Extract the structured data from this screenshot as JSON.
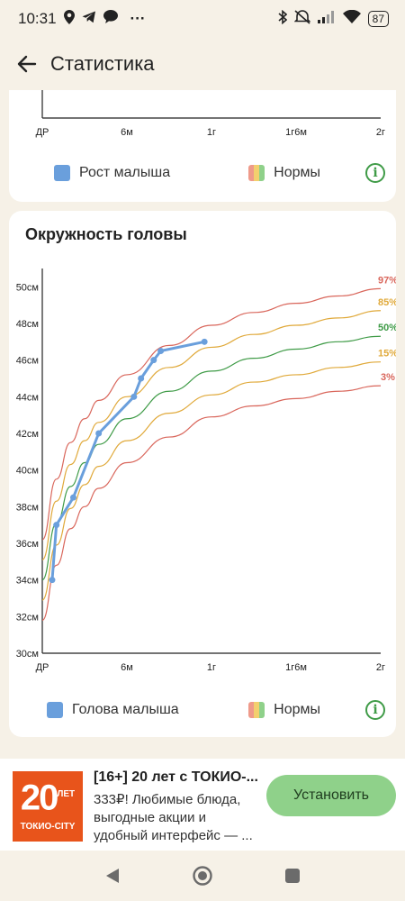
{
  "status": {
    "time": "10:31",
    "dots": "···",
    "battery": "87"
  },
  "header": {
    "title": "Статистика"
  },
  "height_card": {
    "x_ticks": [
      "ДР",
      "6м",
      "1г",
      "1г6м",
      "2г"
    ],
    "legend_baby": "Рост малыша",
    "legend_norms": "Нормы"
  },
  "head_card": {
    "title": "Окружность головы",
    "legend_baby": "Голова малыша",
    "legend_norms": "Нормы"
  },
  "chart_data": {
    "type": "line",
    "title": "Окружность головы",
    "x_ticks": [
      {
        "label": "ДР",
        "value": 0
      },
      {
        "label": "6м",
        "value": 6
      },
      {
        "label": "1г",
        "value": 12
      },
      {
        "label": "1г6м",
        "value": 18
      },
      {
        "label": "2г",
        "value": 24
      }
    ],
    "y_ticks": [
      "30см",
      "32см",
      "34см",
      "36см",
      "38см",
      "40см",
      "42см",
      "44см",
      "46см",
      "48см",
      "50см"
    ],
    "xlim": [
      0,
      24
    ],
    "ylim": [
      30,
      51
    ],
    "grid": false,
    "colors": {
      "baby": "#6a9fdc",
      "p3": "#d9665b",
      "p15": "#e0a93a",
      "p50": "#3f9b47",
      "p85": "#e0a93a",
      "p97": "#d9665b"
    },
    "series": [
      {
        "name": "Голова малыша",
        "color": "#6a9fdc",
        "points": [
          [
            0.7,
            34
          ],
          [
            1.0,
            37
          ],
          [
            2.2,
            38.5
          ],
          [
            4.0,
            42
          ],
          [
            6.5,
            44
          ],
          [
            7.0,
            45
          ],
          [
            7.9,
            46
          ],
          [
            8.4,
            46.5
          ],
          [
            11.5,
            47
          ]
        ]
      },
      {
        "name": "97%",
        "color": "#d9665b",
        "points": [
          [
            0,
            36.2
          ],
          [
            1,
            39.5
          ],
          [
            2,
            41.5
          ],
          [
            3,
            42.8
          ],
          [
            4,
            43.8
          ],
          [
            6,
            45.2
          ],
          [
            9,
            46.8
          ],
          [
            12,
            47.9
          ],
          [
            15,
            48.6
          ],
          [
            18,
            49.1
          ],
          [
            21,
            49.5
          ],
          [
            24,
            49.9
          ]
        ]
      },
      {
        "name": "85%",
        "color": "#e0a93a",
        "points": [
          [
            0,
            35.1
          ],
          [
            1,
            38.3
          ],
          [
            2,
            40.3
          ],
          [
            3,
            41.6
          ],
          [
            4,
            42.6
          ],
          [
            6,
            44.0
          ],
          [
            9,
            45.6
          ],
          [
            12,
            46.7
          ],
          [
            15,
            47.4
          ],
          [
            18,
            47.9
          ],
          [
            21,
            48.3
          ],
          [
            24,
            48.7
          ]
        ]
      },
      {
        "name": "50%",
        "color": "#3f9b47",
        "points": [
          [
            0,
            34.0
          ],
          [
            1,
            37.1
          ],
          [
            2,
            39.1
          ],
          [
            3,
            40.4
          ],
          [
            4,
            41.4
          ],
          [
            6,
            42.8
          ],
          [
            9,
            44.3
          ],
          [
            12,
            45.4
          ],
          [
            15,
            46.1
          ],
          [
            18,
            46.6
          ],
          [
            21,
            47.0
          ],
          [
            24,
            47.3
          ]
        ]
      },
      {
        "name": "15%",
        "color": "#e0a93a",
        "points": [
          [
            0,
            32.9
          ],
          [
            1,
            35.9
          ],
          [
            2,
            37.9
          ],
          [
            3,
            39.2
          ],
          [
            4,
            40.2
          ],
          [
            6,
            41.6
          ],
          [
            9,
            43.1
          ],
          [
            12,
            44.1
          ],
          [
            15,
            44.8
          ],
          [
            18,
            45.2
          ],
          [
            21,
            45.6
          ],
          [
            24,
            45.9
          ]
        ]
      },
      {
        "name": "3%",
        "color": "#d9665b",
        "points": [
          [
            0,
            31.8
          ],
          [
            1,
            34.8
          ],
          [
            2,
            36.8
          ],
          [
            3,
            38.0
          ],
          [
            4,
            39.0
          ],
          [
            6,
            40.4
          ],
          [
            9,
            41.8
          ],
          [
            12,
            42.9
          ],
          [
            15,
            43.5
          ],
          [
            18,
            43.9
          ],
          [
            21,
            44.3
          ],
          [
            24,
            44.6
          ]
        ]
      }
    ]
  },
  "ad": {
    "logo_main": "20",
    "logo_sup": "ЛЕТ",
    "logo_sub": "ТОКИО-CITY",
    "title": "[16+] 20 лет с ТОКИО-...",
    "text": "333₽! Любимые блюда, выгодные акции и удобный интерфейс — ...",
    "button": "Установить"
  }
}
